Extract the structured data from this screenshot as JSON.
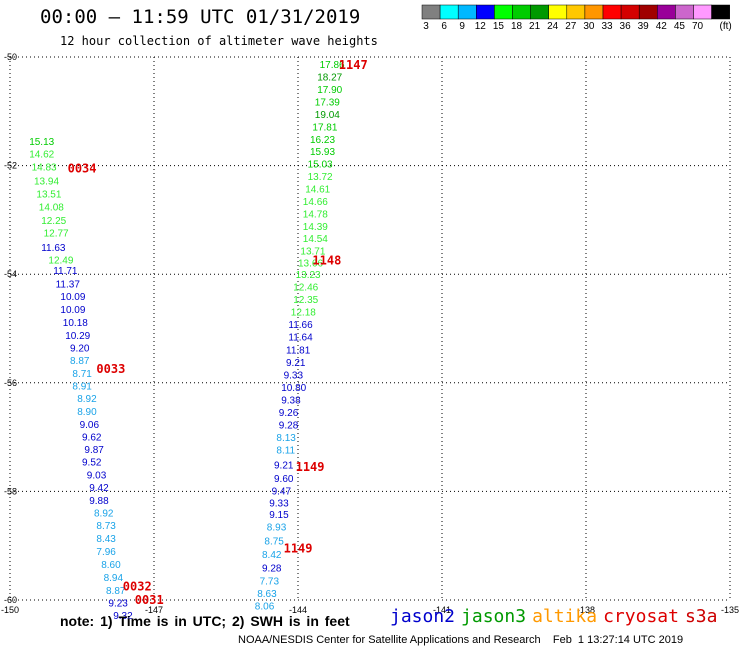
{
  "header": {
    "title": "00:00 – 11:59 UTC 01/31/2019",
    "subtitle": "12 hour collection of altimeter wave heights"
  },
  "legend": {
    "labels": [
      "3",
      "6",
      "9",
      "12",
      "15",
      "18",
      "21",
      "24",
      "27",
      "30",
      "33",
      "36",
      "39",
      "42",
      "45",
      "70",
      "(ft)"
    ],
    "colors": [
      "#808080",
      "#00ffff",
      "#00b8ff",
      "#0000ff",
      "#00ff00",
      "#00cc00",
      "#009900",
      "#ffff00",
      "#ffc800",
      "#ff9600",
      "#ff0000",
      "#d40000",
      "#a00000",
      "#990099",
      "#cc66cc",
      "#ff99ff",
      "#000000"
    ]
  },
  "footer": {
    "note": "note: 1) Time is in UTC; 2) SWH is in feet",
    "credit": "NOAA/NESDIS Center for Satellite Applications and Research    Feb  1 13:27:14 UTC 2019",
    "satellites": [
      {
        "name": "jason2",
        "color": "#0000cc"
      },
      {
        "name": "jason3",
        "color": "#009900"
      },
      {
        "name": "altika",
        "color": "#ff9900"
      },
      {
        "name": "cryosat",
        "color": "#dd0000"
      },
      {
        "name": "s3a",
        "color": "#cc0000"
      }
    ]
  },
  "chart_data": {
    "type": "scatter",
    "xlim": [
      -150,
      -135
    ],
    "ylim": [
      -60,
      -50
    ],
    "x_ticks": [
      "-150",
      "-147",
      "-144",
      "-141",
      "-138",
      "-135"
    ],
    "y_ticks": [
      "-50",
      "-52",
      "-54",
      "-56",
      "-58",
      "-60"
    ],
    "grid": true,
    "time_labels": [
      {
        "text": "1147",
        "lon": -143.15,
        "lat": -50.15
      },
      {
        "text": "0034",
        "lon": -148.8,
        "lat": -52.05
      },
      {
        "text": "1148",
        "lon": -143.7,
        "lat": -53.75
      },
      {
        "text": "0033",
        "lon": -148.2,
        "lat": -55.75
      },
      {
        "text": "1149",
        "lon": -144.05,
        "lat": -57.55
      },
      {
        "text": "1149",
        "lon": -144.3,
        "lat": -59.05
      },
      {
        "text": "0032",
        "lon": -147.65,
        "lat": -59.75
      },
      {
        "text": "0031",
        "lon": -147.4,
        "lat": -60.0
      }
    ],
    "series": [
      {
        "pass": "0031-0034",
        "points": [
          {
            "lon": -149.6,
            "lat": -51.55,
            "swh": 15.13
          },
          {
            "lon": -149.6,
            "lat": -51.78,
            "swh": 14.62
          },
          {
            "lon": -149.55,
            "lat": -52.02,
            "swh": 14.83
          },
          {
            "lon": -149.5,
            "lat": -52.27,
            "swh": 13.94
          },
          {
            "lon": -149.45,
            "lat": -52.51,
            "swh": 13.51
          },
          {
            "lon": -149.4,
            "lat": -52.75,
            "swh": 14.08
          },
          {
            "lon": -149.35,
            "lat": -53.0,
            "swh": 12.25
          },
          {
            "lon": -149.3,
            "lat": -53.23,
            "swh": 12.77
          },
          {
            "lon": -149.35,
            "lat": -53.5,
            "swh": 11.63
          },
          {
            "lon": -149.2,
            "lat": -53.73,
            "swh": 12.49
          },
          {
            "lon": -149.1,
            "lat": -53.92,
            "swh": 11.71
          },
          {
            "lon": -149.05,
            "lat": -54.17,
            "swh": 11.37
          },
          {
            "lon": -148.95,
            "lat": -54.4,
            "swh": 10.09
          },
          {
            "lon": -148.95,
            "lat": -54.64,
            "swh": 10.09
          },
          {
            "lon": -148.9,
            "lat": -54.88,
            "swh": 10.18
          },
          {
            "lon": -148.85,
            "lat": -55.12,
            "swh": 10.29
          },
          {
            "lon": -148.75,
            "lat": -55.35,
            "swh": 9.2
          },
          {
            "lon": -148.75,
            "lat": -55.58,
            "swh": 8.87
          },
          {
            "lon": -148.7,
            "lat": -55.82,
            "swh": 8.71
          },
          {
            "lon": -148.7,
            "lat": -56.05,
            "swh": 8.91
          },
          {
            "lon": -148.6,
            "lat": -56.28,
            "swh": 8.92
          },
          {
            "lon": -148.6,
            "lat": -56.52,
            "swh": 8.9
          },
          {
            "lon": -148.55,
            "lat": -56.76,
            "swh": 9.06
          },
          {
            "lon": -148.5,
            "lat": -56.99,
            "swh": 9.62
          },
          {
            "lon": -148.45,
            "lat": -57.22,
            "swh": 9.87
          },
          {
            "lon": -148.5,
            "lat": -57.45,
            "swh": 9.52
          },
          {
            "lon": -148.4,
            "lat": -57.69,
            "swh": 9.03
          },
          {
            "lon": -148.35,
            "lat": -57.92,
            "swh": 9.42
          },
          {
            "lon": -148.35,
            "lat": -58.16,
            "swh": 9.88
          },
          {
            "lon": -148.25,
            "lat": -58.39,
            "swh": 8.92
          },
          {
            "lon": -148.2,
            "lat": -58.62,
            "swh": 8.73
          },
          {
            "lon": -148.2,
            "lat": -58.86,
            "swh": 8.43
          },
          {
            "lon": -148.2,
            "lat": -59.1,
            "swh": 7.96
          },
          {
            "lon": -148.1,
            "lat": -59.34,
            "swh": 8.6
          },
          {
            "lon": -148.05,
            "lat": -59.58,
            "swh": 8.94
          },
          {
            "lon": -148.0,
            "lat": -59.82,
            "swh": 8.87
          },
          {
            "lon": -147.95,
            "lat": -60.05,
            "swh": 9.23
          },
          {
            "lon": -147.85,
            "lat": -60.28,
            "swh": 9.32
          }
        ]
      },
      {
        "pass": "1147-1149",
        "points": [
          {
            "lon": -143.55,
            "lat": -50.13,
            "swh": 17.86
          },
          {
            "lon": -143.6,
            "lat": -50.36,
            "swh": 18.27
          },
          {
            "lon": -143.6,
            "lat": -50.59,
            "swh": 17.9
          },
          {
            "lon": -143.65,
            "lat": -50.82,
            "swh": 17.39
          },
          {
            "lon": -143.65,
            "lat": -51.05,
            "swh": 19.04
          },
          {
            "lon": -143.7,
            "lat": -51.28,
            "swh": 17.81
          },
          {
            "lon": -143.75,
            "lat": -51.51,
            "swh": 16.23
          },
          {
            "lon": -143.75,
            "lat": -51.73,
            "swh": 15.93
          },
          {
            "lon": -143.8,
            "lat": -51.96,
            "swh": 15.03
          },
          {
            "lon": -143.8,
            "lat": -52.19,
            "swh": 13.72
          },
          {
            "lon": -143.85,
            "lat": -52.42,
            "swh": 14.61
          },
          {
            "lon": -143.9,
            "lat": -52.65,
            "swh": 14.66
          },
          {
            "lon": -143.9,
            "lat": -52.88,
            "swh": 14.78
          },
          {
            "lon": -143.9,
            "lat": -53.11,
            "swh": 14.39
          },
          {
            "lon": -143.9,
            "lat": -53.33,
            "swh": 14.54
          },
          {
            "lon": -143.95,
            "lat": -53.56,
            "swh": 13.71
          },
          {
            "lon": -144.0,
            "lat": -53.78,
            "swh": 13.66
          },
          {
            "lon": -144.05,
            "lat": -54.0,
            "swh": 13.23
          },
          {
            "lon": -144.1,
            "lat": -54.23,
            "swh": 12.46
          },
          {
            "lon": -144.1,
            "lat": -54.46,
            "swh": 12.35
          },
          {
            "lon": -144.15,
            "lat": -54.69,
            "swh": 12.18
          },
          {
            "lon": -144.2,
            "lat": -54.92,
            "swh": 11.66
          },
          {
            "lon": -144.2,
            "lat": -55.15,
            "swh": 11.64
          },
          {
            "lon": -144.25,
            "lat": -55.39,
            "swh": 11.81
          },
          {
            "lon": -144.25,
            "lat": -55.62,
            "swh": 9.21
          },
          {
            "lon": -144.3,
            "lat": -55.85,
            "swh": 9.33
          },
          {
            "lon": -144.35,
            "lat": -56.08,
            "swh": 10.8
          },
          {
            "lon": -144.35,
            "lat": -56.31,
            "swh": 9.38
          },
          {
            "lon": -144.4,
            "lat": -56.54,
            "swh": 9.26
          },
          {
            "lon": -144.4,
            "lat": -56.77,
            "swh": 9.28
          },
          {
            "lon": -144.45,
            "lat": -57.0,
            "swh": 8.13
          },
          {
            "lon": -144.45,
            "lat": -57.23,
            "swh": 8.11
          },
          {
            "lon": -144.5,
            "lat": -57.5,
            "swh": 9.21
          },
          {
            "lon": -144.5,
            "lat": -57.75,
            "swh": 9.6
          },
          {
            "lon": -144.55,
            "lat": -57.98,
            "swh": 9.47
          },
          {
            "lon": -144.6,
            "lat": -58.2,
            "swh": 9.33
          },
          {
            "lon": -144.6,
            "lat": -58.42,
            "swh": 9.15
          },
          {
            "lon": -144.65,
            "lat": -58.65,
            "swh": 8.93
          },
          {
            "lon": -144.7,
            "lat": -58.9,
            "swh": 8.75
          },
          {
            "lon": -144.75,
            "lat": -59.15,
            "swh": 8.42
          },
          {
            "lon": -144.75,
            "lat": -59.4,
            "swh": 9.28
          },
          {
            "lon": -144.8,
            "lat": -59.64,
            "swh": 7.73
          },
          {
            "lon": -144.85,
            "lat": -59.87,
            "swh": 8.63
          },
          {
            "lon": -144.9,
            "lat": -60.1,
            "swh": 8.06
          }
        ]
      }
    ]
  }
}
